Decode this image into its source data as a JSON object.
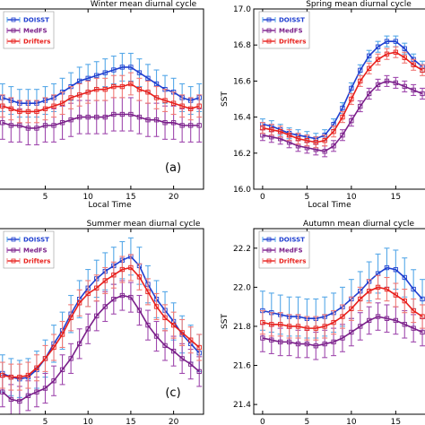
{
  "chart_data": [
    {
      "type": "line",
      "title": "Winter mean diurnal cycle",
      "xlabel": "Local Time",
      "ylabel": "",
      "panel_label": "(a)",
      "xticks": [
        "5",
        "10",
        "15",
        "20"
      ],
      "yticks": [],
      "xlim": [
        -0.5,
        23.5
      ],
      "ylim": [
        14.25,
        14.9
      ],
      "x": [
        0,
        1,
        2,
        3,
        4,
        5,
        6,
        7,
        8,
        9,
        10,
        11,
        12,
        13,
        14,
        15,
        16,
        17,
        18,
        19,
        20,
        21,
        22,
        23
      ],
      "series": [
        {
          "name": "DOISST",
          "color": "#1f3fd0",
          "error_color": "#56a8e8",
          "err": 0.05,
          "values": [
            14.58,
            14.57,
            14.56,
            14.56,
            14.56,
            14.57,
            14.58,
            14.6,
            14.62,
            14.64,
            14.65,
            14.66,
            14.67,
            14.68,
            14.69,
            14.69,
            14.67,
            14.65,
            14.63,
            14.61,
            14.6,
            14.58,
            14.57,
            14.58
          ]
        },
        {
          "name": "MedFS",
          "color": "#7a1f8a",
          "error_color": "#a04aae",
          "err": 0.06,
          "values": [
            14.49,
            14.48,
            14.48,
            14.47,
            14.47,
            14.48,
            14.48,
            14.49,
            14.5,
            14.51,
            14.51,
            14.51,
            14.51,
            14.52,
            14.52,
            14.52,
            14.51,
            14.5,
            14.5,
            14.49,
            14.49,
            14.48,
            14.48,
            14.48
          ]
        },
        {
          "name": "Drifters",
          "color": "#e8201c",
          "error_color": "#f07a78",
          "err": 0.04,
          "values": [
            14.55,
            14.54,
            14.53,
            14.53,
            14.53,
            14.54,
            14.55,
            14.56,
            14.58,
            14.59,
            14.6,
            14.61,
            14.61,
            14.62,
            14.62,
            14.63,
            14.61,
            14.6,
            14.58,
            14.57,
            14.56,
            14.55,
            14.54,
            14.55
          ]
        }
      ]
    },
    {
      "type": "line",
      "title": "Spring mean diurnal cycle",
      "xlabel": "Local Time",
      "ylabel": "SST",
      "panel_label": "",
      "xticks": [
        "0",
        "5",
        "10",
        "15"
      ],
      "yticks": [
        "16.0",
        "16.2",
        "16.4",
        "16.6",
        "16.8",
        "17.0"
      ],
      "xlim": [
        -1,
        18.5
      ],
      "ylim": [
        16.0,
        17.0
      ],
      "x": [
        0,
        1,
        2,
        3,
        4,
        5,
        6,
        7,
        8,
        9,
        10,
        11,
        12,
        13,
        14,
        15,
        16,
        17,
        18
      ],
      "series": [
        {
          "name": "DOISST",
          "color": "#1f3fd0",
          "error_color": "#56a8e8",
          "err": 0.03,
          "values": [
            16.36,
            16.35,
            16.33,
            16.31,
            16.3,
            16.29,
            16.28,
            16.3,
            16.36,
            16.45,
            16.56,
            16.66,
            16.74,
            16.79,
            16.82,
            16.82,
            16.78,
            16.72,
            16.68
          ]
        },
        {
          "name": "MedFS",
          "color": "#7a1f8a",
          "error_color": "#a04aae",
          "err": 0.03,
          "values": [
            16.3,
            16.29,
            16.28,
            16.26,
            16.24,
            16.23,
            16.22,
            16.21,
            16.24,
            16.3,
            16.38,
            16.46,
            16.53,
            16.58,
            16.6,
            16.59,
            16.57,
            16.55,
            16.53
          ]
        },
        {
          "name": "Drifters",
          "color": "#e8201c",
          "error_color": "#f07a78",
          "err": 0.03,
          "values": [
            16.34,
            16.33,
            16.32,
            16.3,
            16.28,
            16.27,
            16.26,
            16.27,
            16.32,
            16.4,
            16.5,
            16.6,
            16.67,
            16.72,
            16.75,
            16.76,
            16.73,
            16.69,
            16.66
          ]
        }
      ]
    },
    {
      "type": "line",
      "title": "Summer mean diurnal cycle",
      "xlabel": "Local Time",
      "ylabel": "",
      "panel_label": "(c)",
      "xticks": [
        "5",
        "10",
        "15",
        "20"
      ],
      "yticks": [],
      "xlim": [
        -0.5,
        23.5
      ],
      "ylim": [
        0.0,
        1.0
      ],
      "x": [
        0,
        1,
        2,
        3,
        4,
        5,
        6,
        7,
        8,
        9,
        10,
        11,
        12,
        13,
        14,
        15,
        16,
        17,
        18,
        19,
        20,
        21,
        22,
        23
      ],
      "series": [
        {
          "name": "DOISST",
          "color": "#1f3fd0",
          "error_color": "#56a8e8",
          "err": 0.1,
          "values": [
            0.22,
            0.2,
            0.19,
            0.2,
            0.24,
            0.3,
            0.38,
            0.45,
            0.54,
            0.62,
            0.68,
            0.73,
            0.77,
            0.8,
            0.83,
            0.85,
            0.8,
            0.7,
            0.62,
            0.56,
            0.5,
            0.43,
            0.38,
            0.33
          ]
        },
        {
          "name": "MedFS",
          "color": "#7a1f8a",
          "error_color": "#a04aae",
          "err": 0.08,
          "values": [
            0.12,
            0.08,
            0.07,
            0.1,
            0.12,
            0.14,
            0.18,
            0.24,
            0.3,
            0.38,
            0.46,
            0.53,
            0.58,
            0.62,
            0.64,
            0.63,
            0.56,
            0.48,
            0.42,
            0.37,
            0.34,
            0.3,
            0.27,
            0.23
          ]
        },
        {
          "name": "Drifters",
          "color": "#e8201c",
          "error_color": "#f07a78",
          "err": 0.07,
          "values": [
            0.21,
            0.2,
            0.2,
            0.21,
            0.25,
            0.3,
            0.36,
            0.43,
            0.52,
            0.6,
            0.65,
            0.68,
            0.72,
            0.75,
            0.78,
            0.79,
            0.74,
            0.66,
            0.58,
            0.52,
            0.48,
            0.44,
            0.4,
            0.36
          ]
        }
      ]
    },
    {
      "type": "line",
      "title": "Autumn mean diurnal cycle",
      "xlabel": "Local Time",
      "ylabel": "SST",
      "panel_label": "",
      "xticks": [
        "0",
        "5",
        "10",
        "15"
      ],
      "yticks": [
        "21.4",
        "21.6",
        "21.8",
        "22.0",
        "22.2"
      ],
      "xlim": [
        -1,
        18.5
      ],
      "ylim": [
        21.35,
        22.3
      ],
      "x": [
        0,
        1,
        2,
        3,
        4,
        5,
        6,
        7,
        8,
        9,
        10,
        11,
        12,
        13,
        14,
        15,
        16,
        17,
        18
      ],
      "series": [
        {
          "name": "DOISST",
          "color": "#1f3fd0",
          "error_color": "#56a8e8",
          "err": 0.1,
          "values": [
            21.88,
            21.87,
            21.86,
            21.85,
            21.85,
            21.84,
            21.84,
            21.85,
            21.87,
            21.9,
            21.94,
            21.98,
            22.03,
            22.07,
            22.1,
            22.09,
            22.05,
            21.99,
            21.94
          ]
        },
        {
          "name": "MedFS",
          "color": "#7a1f8a",
          "error_color": "#a04aae",
          "err": 0.07,
          "values": [
            21.74,
            21.73,
            21.72,
            21.72,
            21.71,
            21.71,
            21.7,
            21.71,
            21.72,
            21.74,
            21.77,
            21.8,
            21.83,
            21.85,
            21.84,
            21.83,
            21.81,
            21.79,
            21.77
          ]
        },
        {
          "name": "Drifters",
          "color": "#e8201c",
          "error_color": "#f07a78",
          "err": 0.06,
          "values": [
            21.82,
            21.81,
            21.81,
            21.8,
            21.8,
            21.79,
            21.79,
            21.8,
            21.82,
            21.85,
            21.89,
            21.94,
            21.98,
            22.0,
            21.99,
            21.96,
            21.93,
            21.88,
            21.85
          ]
        }
      ]
    }
  ]
}
